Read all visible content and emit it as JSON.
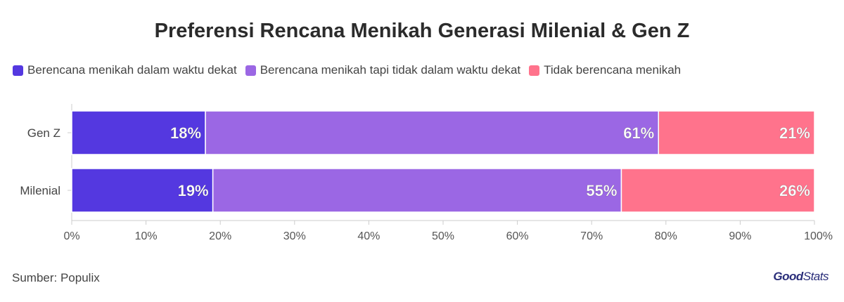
{
  "chart_data": {
    "type": "bar",
    "orientation": "horizontal",
    "stacked": true,
    "title": "Preferensi Rencana Menikah Generasi Milenial & Gen Z",
    "categories": [
      "Gen Z",
      "Milenial"
    ],
    "series": [
      {
        "name": "Berencana menikah dalam waktu dekat",
        "values": [
          18,
          19
        ],
        "labels": [
          "18%",
          "19%"
        ],
        "color": "#5438e0"
      },
      {
        "name": "Berencana menikah tapi tidak dalam waktu dekat",
        "values": [
          61,
          55
        ],
        "labels": [
          "61%",
          "55%"
        ],
        "color": "#9b67e4"
      },
      {
        "name": "Tidak berencana menikah",
        "values": [
          21,
          26
        ],
        "labels": [
          "21%",
          "26%"
        ],
        "color": "#ff738c"
      }
    ],
    "xlim": [
      0,
      100
    ],
    "xticks": [
      "0%",
      "10%",
      "20%",
      "30%",
      "40%",
      "50%",
      "60%",
      "70%",
      "80%",
      "90%",
      "100%"
    ],
    "legend_position": "top-left",
    "grid": false
  },
  "footer": {
    "source": "Sumber: Populix",
    "brand_bold": "Good",
    "brand_light": "Stats"
  }
}
